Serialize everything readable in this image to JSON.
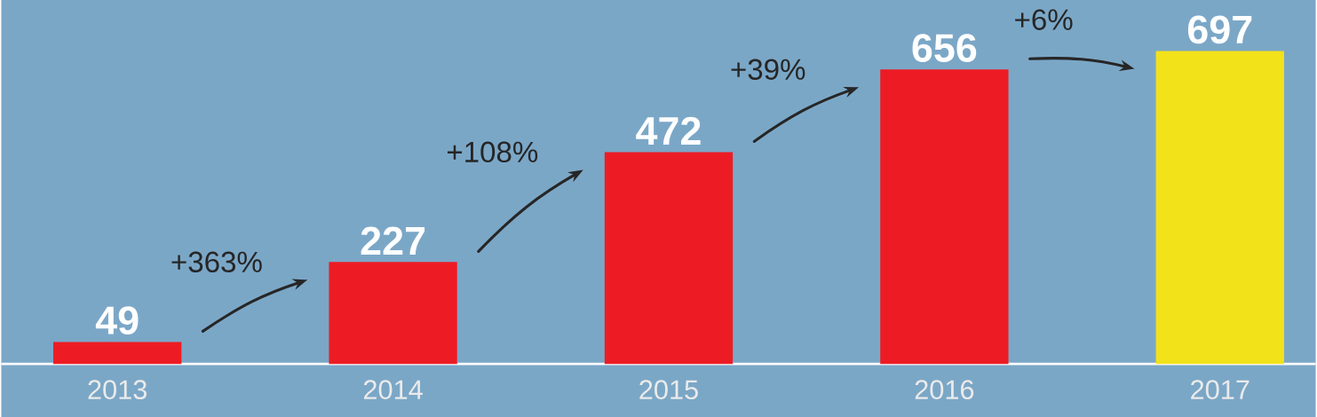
{
  "chart_data": {
    "type": "bar",
    "categories": [
      "2013",
      "2014",
      "2015",
      "2016",
      "2017"
    ],
    "values": [
      49,
      227,
      472,
      656,
      697
    ],
    "colors": [
      "#ed1c24",
      "#ed1c24",
      "#ed1c24",
      "#ed1c24",
      "#f2e21a"
    ],
    "value_labels": [
      "49",
      "227",
      "472",
      "656",
      "697"
    ],
    "annotations": [
      "+363%",
      "+108%",
      "+39%",
      "+6%"
    ]
  }
}
